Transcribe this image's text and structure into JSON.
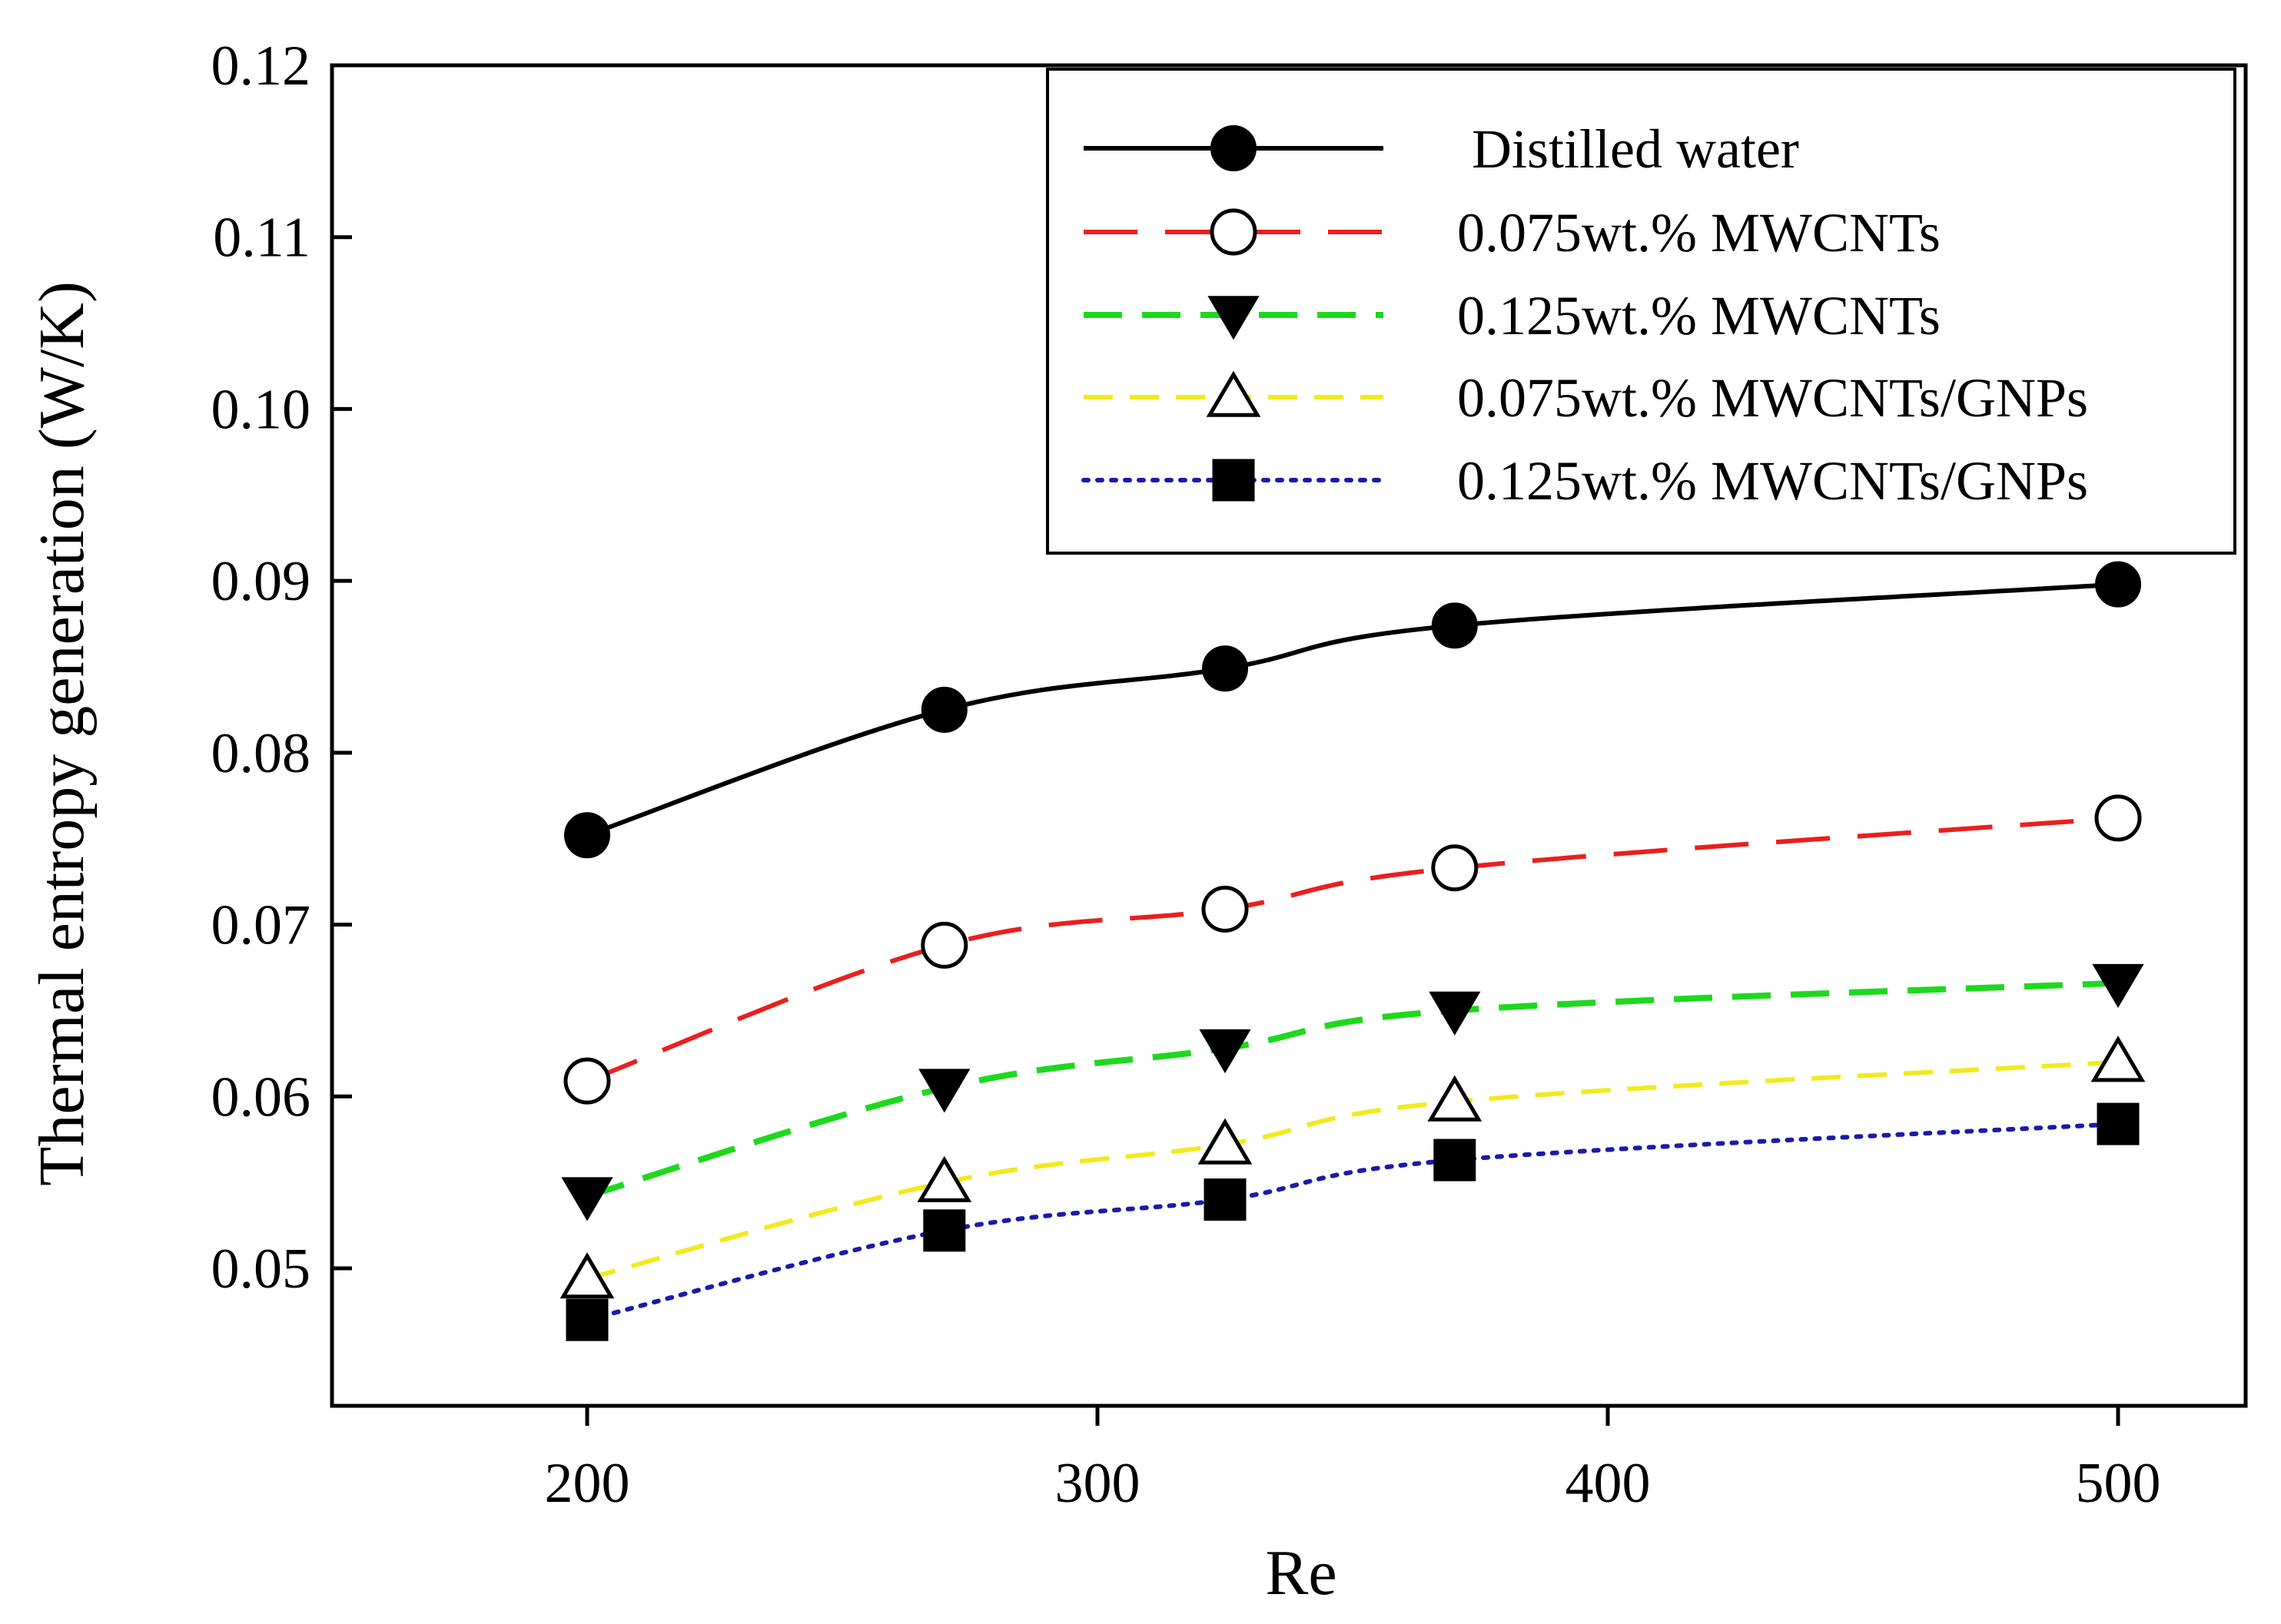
{
  "chart_data": {
    "type": "line",
    "title": "",
    "xlabel": "Re",
    "ylabel": "Thermal entropy generation (W/K)",
    "xlim": [
      150,
      525
    ],
    "ylim": [
      0.042,
      0.12
    ],
    "xticks": [
      200,
      300,
      400,
      500
    ],
    "xtick_labels": [
      "200",
      "300",
      "400",
      "500"
    ],
    "yticks": [
      0.05,
      0.06,
      0.07,
      0.08,
      0.09,
      0.1,
      0.11,
      0.12
    ],
    "ytick_labels": [
      "0.05",
      "0.06",
      "0.07",
      "0.08",
      "0.09",
      "0.10",
      "0.11",
      "0.12"
    ],
    "grid": false,
    "legend_position": "top-right",
    "x": [
      200,
      270,
      325,
      370,
      500
    ],
    "series": [
      {
        "name": "Distilled water",
        "values": [
          0.0752,
          0.0825,
          0.0849,
          0.0874,
          0.0898
        ],
        "color": "#000000",
        "marker": "filled-circle",
        "line_style": "solid"
      },
      {
        "name": "0.075wt.% MWCNTs",
        "values": [
          0.0609,
          0.0688,
          0.0709,
          0.0733,
          0.0762
        ],
        "color": "#e8201e",
        "marker": "open-circle",
        "line_style": "long-dash"
      },
      {
        "name": "0.125wt.% MWCNTs",
        "values": [
          0.0542,
          0.0605,
          0.0628,
          0.065,
          0.0666
        ],
        "color": "#1ed81e",
        "marker": "filled-triangle-down",
        "line_style": "dash"
      },
      {
        "name": "0.075wt.% MWCNTs/GNPs",
        "values": [
          0.0494,
          0.055,
          0.0572,
          0.0597,
          0.062
        ],
        "color": "#f2ea1e",
        "marker": "open-triangle-up",
        "line_style": "short-dash"
      },
      {
        "name": "0.125wt.% MWCNTs/GNPs",
        "values": [
          0.047,
          0.0522,
          0.054,
          0.0563,
          0.0584
        ],
        "color": "#1a1aa8",
        "marker": "filled-square",
        "line_style": "dotted"
      }
    ]
  }
}
